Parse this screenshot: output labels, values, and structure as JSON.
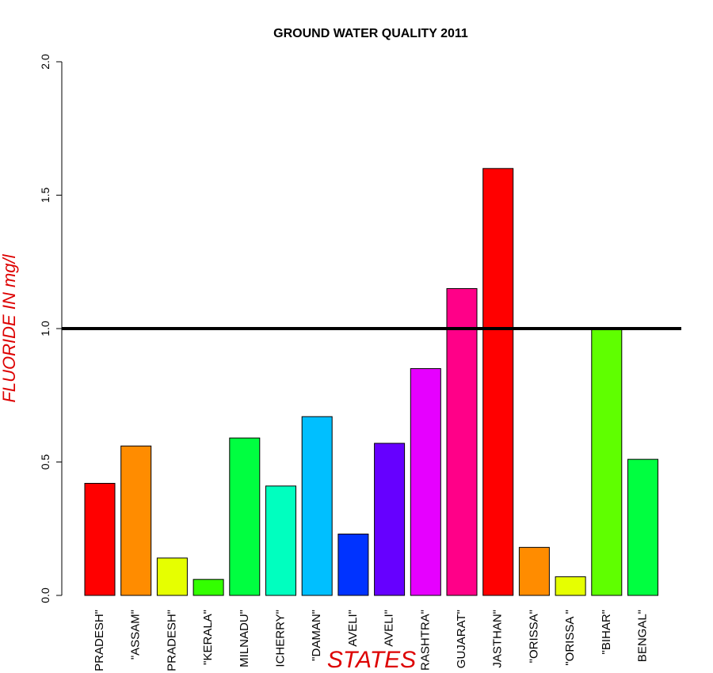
{
  "chart_data": {
    "type": "bar",
    "title": "GROUND WATER QUALITY 2011",
    "xlabel": "STATES",
    "ylabel": "FLUORIDE IN mg/l",
    "categories": [
      "PRADESH\"",
      "\"ASSAM\"",
      "PRADESH\"",
      "\"KERALA\"",
      "MILNADU\"",
      "ICHERRY\"",
      "\"DAMAN\"",
      "AVELI\"",
      "AVELI\"",
      "RASHTRA\"",
      "GUJARAT\"",
      "JASTHAN\"",
      "\"ORISSA\"",
      "\"ORISSA \"",
      "\"BIHAR\"",
      "BENGAL\""
    ],
    "values": [
      0.42,
      0.56,
      0.14,
      0.06,
      0.59,
      0.41,
      0.67,
      0.23,
      0.57,
      0.85,
      1.15,
      1.6,
      0.18,
      0.07,
      1.0,
      0.51
    ],
    "colors": [
      "#FF0000",
      "#FF8C00",
      "#E6FF00",
      "#33FF00",
      "#00FF40",
      "#00FFBF",
      "#00BFFF",
      "#0033FF",
      "#6600FF",
      "#E600FF",
      "#FF0088",
      "#FF0000",
      "#FF8C00",
      "#E6FF00",
      "#5FFF00",
      "#00FF40"
    ],
    "yticks": [
      "0.0",
      "0.5",
      "1.0",
      "1.5",
      "2.0"
    ],
    "ylim": [
      0,
      2
    ],
    "reference_line": 1.0,
    "grid": false,
    "title_color": "#000000",
    "label_color": "#DD0000"
  }
}
